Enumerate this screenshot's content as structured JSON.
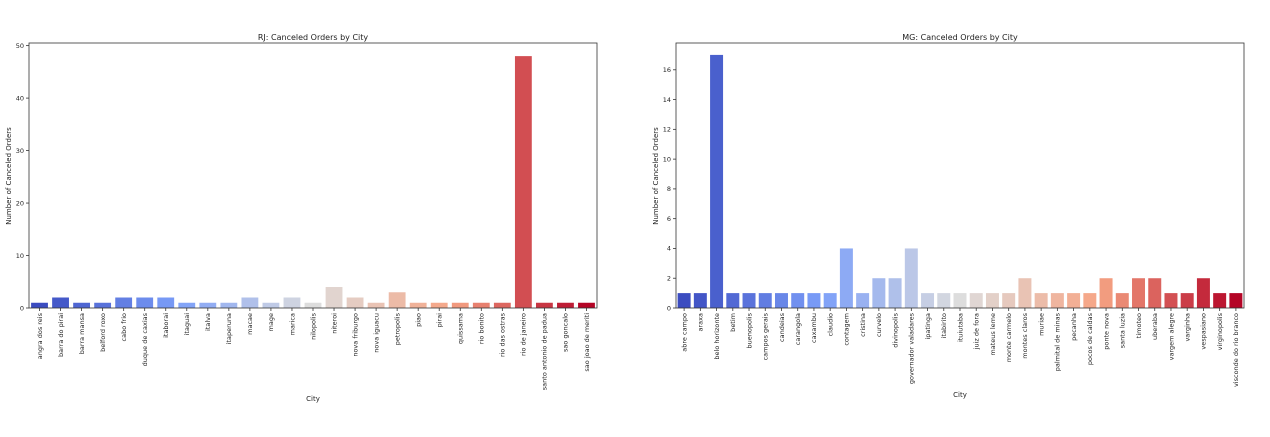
{
  "chart_data": [
    {
      "type": "bar",
      "title": "RJ: Canceled Orders by City",
      "xlabel": "City",
      "ylabel": "Number of Canceled Orders",
      "ylim": [
        0,
        50.5
      ],
      "yticks": [
        0,
        10,
        20,
        30,
        40,
        50
      ],
      "grid": false,
      "palette": "coolwarm",
      "categories": [
        "angra dos reis",
        "barra do pirai",
        "barra mansa",
        "belford roxo",
        "cabo frio",
        "duque de caxias",
        "itaborai",
        "itaguai",
        "italva",
        "itaperuna",
        "macae",
        "mage",
        "marica",
        "nilopolis",
        "niteroi",
        "nova friburgo",
        "nova iguacu",
        "petropolis",
        "piao",
        "pirai",
        "quissama",
        "rio bonito",
        "rio das ostras",
        "rio de janeiro",
        "santo antonio de padua",
        "sao goncalo",
        "sao joao de meriti"
      ],
      "values": [
        1,
        2,
        1,
        1,
        2,
        2,
        2,
        1,
        1,
        1,
        2,
        1,
        2,
        1,
        4,
        2,
        1,
        3,
        1,
        1,
        1,
        1,
        1,
        48,
        1,
        1,
        1
      ]
    },
    {
      "type": "bar",
      "title": "MG: Canceled Orders by City",
      "xlabel": "City",
      "ylabel": "Number of Canceled Orders",
      "ylim": [
        0,
        17.8
      ],
      "yticks": [
        0,
        2,
        4,
        6,
        8,
        10,
        12,
        14,
        16
      ],
      "grid": false,
      "palette": "coolwarm",
      "categories": [
        "abre campo",
        "araxa",
        "belo horizonte",
        "betim",
        "buenopolis",
        "campos gerais",
        "candeias",
        "carangola",
        "caxambu",
        "claudio",
        "contagem",
        "cristina",
        "curvelo",
        "divinopolis",
        "governador valadares",
        "ipatinga",
        "itabirito",
        "ituiutaba",
        "juiz de fora",
        "mateus leme",
        "monte carmelo",
        "montes claros",
        "muriae",
        "palmital de minas",
        "pecanha",
        "pocos de caldas",
        "ponte nova",
        "santa luzia",
        "timoteo",
        "uberaba",
        "vargem alegre",
        "varginha",
        "vespasiano",
        "virginopolis",
        "visconde do rio branco"
      ],
      "values": [
        1,
        1,
        17,
        1,
        1,
        1,
        1,
        1,
        1,
        1,
        4,
        1,
        2,
        2,
        4,
        1,
        1,
        1,
        1,
        1,
        1,
        2,
        1,
        1,
        1,
        1,
        2,
        1,
        2,
        2,
        1,
        1,
        2,
        1,
        1
      ]
    }
  ]
}
